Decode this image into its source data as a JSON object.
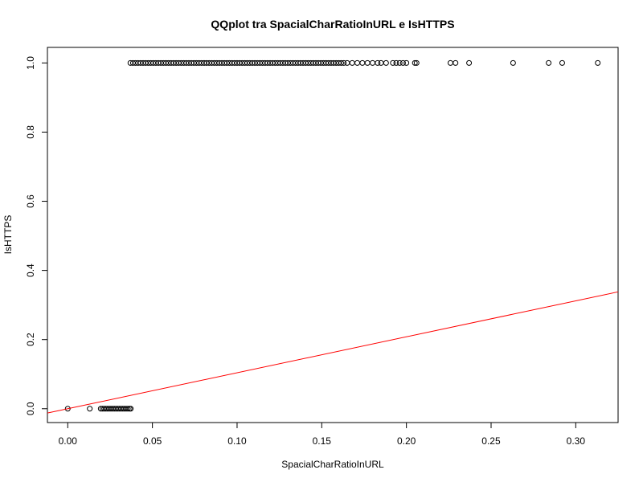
{
  "chart_data": {
    "type": "scatter",
    "title": "QQplot tra SpacialCharRatioInURL e IsHTTPS",
    "xlabel": "SpacialCharRatioInURL",
    "ylabel": "IsHTTPS",
    "xlim": [
      -0.012,
      0.325
    ],
    "ylim": [
      -0.04,
      1.045
    ],
    "x_ticks": [
      0.0,
      0.05,
      0.1,
      0.15,
      0.2,
      0.25,
      0.3
    ],
    "x_tick_labels": [
      "0.00",
      "0.05",
      "0.10",
      "0.15",
      "0.20",
      "0.25",
      "0.30"
    ],
    "y_ticks": [
      0.0,
      0.2,
      0.4,
      0.6,
      0.8,
      1.0
    ],
    "y_tick_labels": [
      "0.0",
      "0.2",
      "0.4",
      "0.6",
      "0.8",
      "1.0"
    ],
    "grid": false,
    "legend": "none",
    "point_color": "#000000",
    "line_color": "#ff0000",
    "series": [
      {
        "points_y0": [
          [
            0.0,
            0.0
          ],
          [
            0.013,
            0.0
          ],
          [
            0.0195,
            0.0
          ],
          [
            0.0205,
            0.0
          ],
          [
            0.0215,
            0.0
          ],
          [
            0.0225,
            0.0
          ],
          [
            0.0235,
            0.0
          ],
          [
            0.0245,
            0.0
          ],
          [
            0.0255,
            0.0
          ],
          [
            0.0265,
            0.0
          ],
          [
            0.0275,
            0.0
          ],
          [
            0.0285,
            0.0
          ],
          [
            0.0295,
            0.0
          ],
          [
            0.0305,
            0.0
          ],
          [
            0.0315,
            0.0
          ],
          [
            0.0325,
            0.0
          ],
          [
            0.0335,
            0.0
          ],
          [
            0.0345,
            0.0
          ],
          [
            0.0355,
            0.0
          ],
          [
            0.0365,
            0.0
          ],
          [
            0.0372,
            0.0
          ]
        ],
        "points_y1_sparse": [
          [
            0.165,
            1.0
          ],
          [
            0.168,
            1.0
          ],
          [
            0.171,
            1.0
          ],
          [
            0.174,
            1.0
          ],
          [
            0.177,
            1.0
          ],
          [
            0.18,
            1.0
          ],
          [
            0.183,
            1.0
          ],
          [
            0.185,
            1.0
          ],
          [
            0.188,
            1.0
          ],
          [
            0.192,
            1.0
          ],
          [
            0.194,
            1.0
          ],
          [
            0.196,
            1.0
          ],
          [
            0.198,
            1.0
          ],
          [
            0.2,
            1.0
          ],
          [
            0.205,
            1.0
          ],
          [
            0.206,
            1.0
          ],
          [
            0.226,
            1.0
          ],
          [
            0.229,
            1.0
          ],
          [
            0.237,
            1.0
          ],
          [
            0.263,
            1.0
          ],
          [
            0.284,
            1.0
          ],
          [
            0.292,
            1.0
          ],
          [
            0.313,
            1.0
          ]
        ],
        "dense_y1_range": [
          0.037,
          0.163
        ],
        "dense_y1_step": 0.0015
      }
    ],
    "reference_line": {
      "slope": 1.04,
      "intercept": 0.0,
      "color": "#ff0000"
    }
  }
}
